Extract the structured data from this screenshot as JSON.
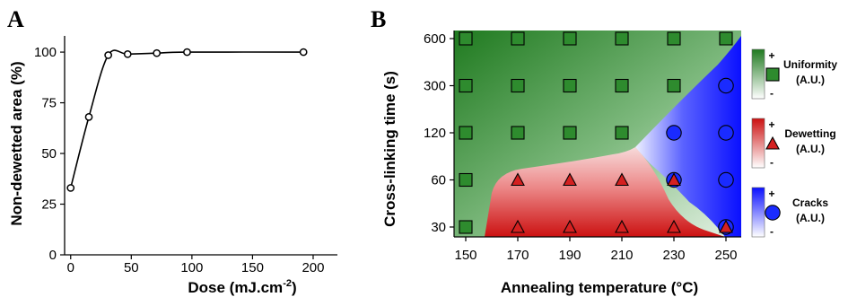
{
  "chart_data": [
    {
      "panel": "A",
      "type": "line",
      "xlabel": "Dose (mJ.cm",
      "xlabel_sup": "-2",
      "xlabel_end": ")",
      "ylabel": "Non-dewetted area (%)",
      "xlim": [
        -5,
        220
      ],
      "ylim": [
        0,
        108
      ],
      "xticks": [
        0,
        50,
        100,
        150,
        200
      ],
      "yticks": [
        0,
        25,
        50,
        75,
        100
      ],
      "x": [
        0,
        15,
        31,
        47,
        71,
        96,
        192
      ],
      "y": [
        33,
        68,
        98.5,
        99,
        99.5,
        100,
        100
      ]
    },
    {
      "panel": "B",
      "type": "scatter",
      "xlabel": "Annealing temperature (°C)",
      "ylabel": "Cross-linking time (s)",
      "xticks": [
        "150",
        "170",
        "190",
        "210",
        "230",
        "250"
      ],
      "yticks": [
        "30",
        "60",
        "120",
        "300",
        "600"
      ],
      "colors": {
        "uniformity": "#2e8b2e",
        "dewetting": "#d42020",
        "cracks": "#1a2bff"
      },
      "legend": [
        {
          "label": "Uniformity",
          "unit": "(A.U.)",
          "marker": "square",
          "plus": "+",
          "minus": "-"
        },
        {
          "label": "Dewetting",
          "unit": "(A.U.)",
          "marker": "triangle",
          "plus": "+",
          "minus": "-"
        },
        {
          "label": "Cracks",
          "unit": "(A.U.)",
          "marker": "circle",
          "plus": "+",
          "minus": "-"
        }
      ],
      "points": [
        {
          "t": "150",
          "s": "600",
          "m": "square"
        },
        {
          "t": "170",
          "s": "600",
          "m": "square"
        },
        {
          "t": "190",
          "s": "600",
          "m": "square"
        },
        {
          "t": "210",
          "s": "600",
          "m": "square"
        },
        {
          "t": "230",
          "s": "600",
          "m": "square"
        },
        {
          "t": "250",
          "s": "600",
          "m": "square"
        },
        {
          "t": "150",
          "s": "300",
          "m": "square"
        },
        {
          "t": "170",
          "s": "300",
          "m": "square"
        },
        {
          "t": "190",
          "s": "300",
          "m": "square"
        },
        {
          "t": "210",
          "s": "300",
          "m": "square"
        },
        {
          "t": "230",
          "s": "300",
          "m": "square"
        },
        {
          "t": "250",
          "s": "300",
          "m": "circle"
        },
        {
          "t": "150",
          "s": "120",
          "m": "square"
        },
        {
          "t": "170",
          "s": "120",
          "m": "square"
        },
        {
          "t": "190",
          "s": "120",
          "m": "square"
        },
        {
          "t": "210",
          "s": "120",
          "m": "square"
        },
        {
          "t": "230",
          "s": "120",
          "m": "circle"
        },
        {
          "t": "250",
          "s": "120",
          "m": "circle"
        },
        {
          "t": "150",
          "s": "60",
          "m": "square"
        },
        {
          "t": "170",
          "s": "60",
          "m": "triangle"
        },
        {
          "t": "190",
          "s": "60",
          "m": "triangle"
        },
        {
          "t": "210",
          "s": "60",
          "m": "triangle"
        },
        {
          "t": "230",
          "s": "60",
          "m": "circle+triangle"
        },
        {
          "t": "250",
          "s": "60",
          "m": "circle"
        },
        {
          "t": "150",
          "s": "30",
          "m": "square"
        },
        {
          "t": "170",
          "s": "30",
          "m": "triangle"
        },
        {
          "t": "190",
          "s": "30",
          "m": "triangle"
        },
        {
          "t": "210",
          "s": "30",
          "m": "triangle"
        },
        {
          "t": "230",
          "s": "30",
          "m": "triangle"
        },
        {
          "t": "250",
          "s": "30",
          "m": "circle+triangle"
        }
      ]
    }
  ]
}
